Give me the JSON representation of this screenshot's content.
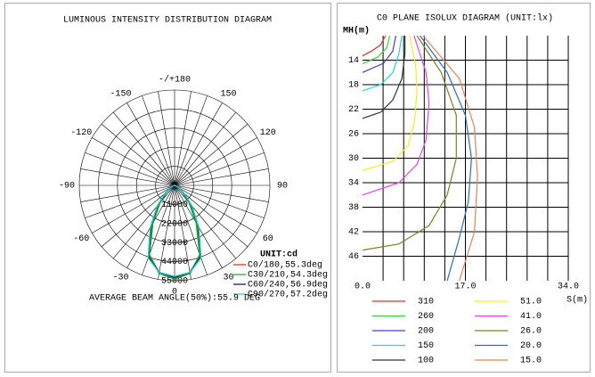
{
  "chart_data": [
    {
      "type": "polar",
      "title": "LUMINOUS INTENSITY DISTRIBUTION DIAGRAM",
      "unit_label": "UNIT:cd",
      "note": "AVERAGE BEAM ANGLE(50%):55.9 DEG",
      "rlim": [
        0,
        55000
      ],
      "rticks": [
        0,
        11000,
        22000,
        33000,
        44000,
        55000
      ],
      "angle_ticks": [
        {
          "value": 180,
          "label": "-/+180"
        },
        150,
        120,
        90,
        60,
        30,
        0,
        -30,
        -60,
        -90,
        -120,
        -150
      ],
      "angle_minor_ticks": [
        -170,
        -160,
        -140,
        -130,
        -110,
        -100,
        -80,
        -70,
        -50,
        -40,
        -20,
        -10,
        10,
        20,
        40,
        50,
        70,
        80,
        100,
        110,
        130,
        140,
        160,
        170
      ],
      "angles": [
        -90,
        -80,
        -70,
        -60,
        -50,
        -40,
        -30,
        -20,
        -10,
        0,
        10,
        20,
        30,
        40,
        50,
        60,
        70,
        80,
        90
      ],
      "series": [
        {
          "name": "C0/180,55.3deg",
          "color": "#e02020",
          "values": [
            0,
            200,
            800,
            2500,
            6500,
            14000,
            26000,
            43000,
            51000,
            53500,
            51000,
            43000,
            26000,
            14000,
            6500,
            2500,
            800,
            200,
            0
          ]
        },
        {
          "name": "C30/210,54.3deg",
          "color": "#10b010",
          "values": [
            0,
            200,
            700,
            2300,
            6000,
            13000,
            25000,
            42500,
            51500,
            54000,
            51500,
            42500,
            25000,
            13000,
            6000,
            2300,
            700,
            200,
            0
          ]
        },
        {
          "name": "C60/240,56.9deg",
          "color": "#000080",
          "values": [
            0,
            250,
            900,
            2800,
            7000,
            15000,
            27500,
            44000,
            51000,
            53000,
            51000,
            44000,
            27500,
            15000,
            7000,
            2800,
            900,
            250,
            0
          ]
        },
        {
          "name": "C90/270,57.2deg",
          "color": "#20c8d0",
          "values": [
            0,
            250,
            900,
            2900,
            7200,
            15500,
            28000,
            44500,
            51000,
            52500,
            51000,
            44500,
            28000,
            15500,
            7200,
            2900,
            900,
            250,
            0
          ]
        }
      ]
    },
    {
      "type": "isolux",
      "title": "C0 PLANE ISOLUX DIAGRAM (UNIT:lx)",
      "ylabel": "MH(m)",
      "xlabel": "S(m)",
      "xlim": [
        0,
        34
      ],
      "ylim": [
        10,
        50
      ],
      "y_inverted": true,
      "xticks": [
        {
          "value": 0,
          "label": "0.0"
        },
        {
          "value": 17,
          "label": "17.0"
        },
        {
          "value": 34,
          "label": "34.0"
        }
      ],
      "yticks": [
        14,
        18,
        22,
        26,
        30,
        34,
        38,
        42,
        46
      ],
      "xgrid": [
        3.4,
        6.8,
        10.2,
        13.6,
        17,
        20.4,
        23.8,
        27.2,
        30.6,
        34
      ],
      "series": [
        {
          "name": "310",
          "color": "#e03030",
          "x": [
            3.8,
            3.0,
            1.5,
            0
          ],
          "values": [
            10,
            11.5,
            12.5,
            13.3
          ]
        },
        {
          "name": "260",
          "color": "#40d040",
          "x": [
            4.5,
            4.0,
            2.5,
            0
          ],
          "values": [
            10,
            12,
            13.5,
            14.6
          ]
        },
        {
          "name": "200",
          "color": "#4040d0",
          "x": [
            5.5,
            5.0,
            3.5,
            0
          ],
          "values": [
            10,
            12.5,
            14.5,
            16
          ]
        },
        {
          "name": "150",
          "color": "#20d8e0",
          "x": [
            6.5,
            6.0,
            5.0,
            3.0,
            0
          ],
          "values": [
            10,
            13,
            16,
            18,
            19
          ]
        },
        {
          "name": "100",
          "color": "#303030",
          "x": [
            7.0,
            7.0,
            6.5,
            5.0,
            3.0,
            0
          ],
          "values": [
            10,
            13,
            17,
            20.5,
            22.5,
            23.5
          ]
        },
        {
          "name": "51.0",
          "color": "#f0f020",
          "x": [
            7.8,
            8.8,
            9.0,
            8.6,
            7.5,
            5.0,
            0
          ],
          "values": [
            10,
            15,
            19,
            24,
            28,
            30.5,
            32
          ]
        },
        {
          "name": "41.0",
          "color": "#f040f0",
          "x": [
            8.5,
            10.5,
            11.0,
            10.5,
            9.0,
            6.0,
            0
          ],
          "values": [
            10,
            16,
            21,
            27,
            31,
            34,
            36
          ]
        },
        {
          "name": "26.0",
          "color": "#808020",
          "x": [
            9.0,
            13.0,
            15.5,
            15.5,
            14.0,
            11.0,
            6.0,
            0
          ],
          "values": [
            10,
            16,
            23,
            30,
            36,
            41,
            44,
            45
          ]
        },
        {
          "name": "20.0",
          "color": "#2070d0",
          "x": [
            9.5,
            14.0,
            17.0,
            18.0,
            17.5,
            16.0,
            14.0
          ],
          "values": [
            10,
            16,
            23,
            30,
            37,
            43,
            50
          ]
        },
        {
          "name": "15.0",
          "color": "#f08050",
          "x": [
            10.0,
            16.0,
            18.5,
            19.0,
            18.5,
            16.0
          ],
          "values": [
            10,
            17,
            25,
            33,
            42,
            50
          ]
        }
      ]
    }
  ]
}
